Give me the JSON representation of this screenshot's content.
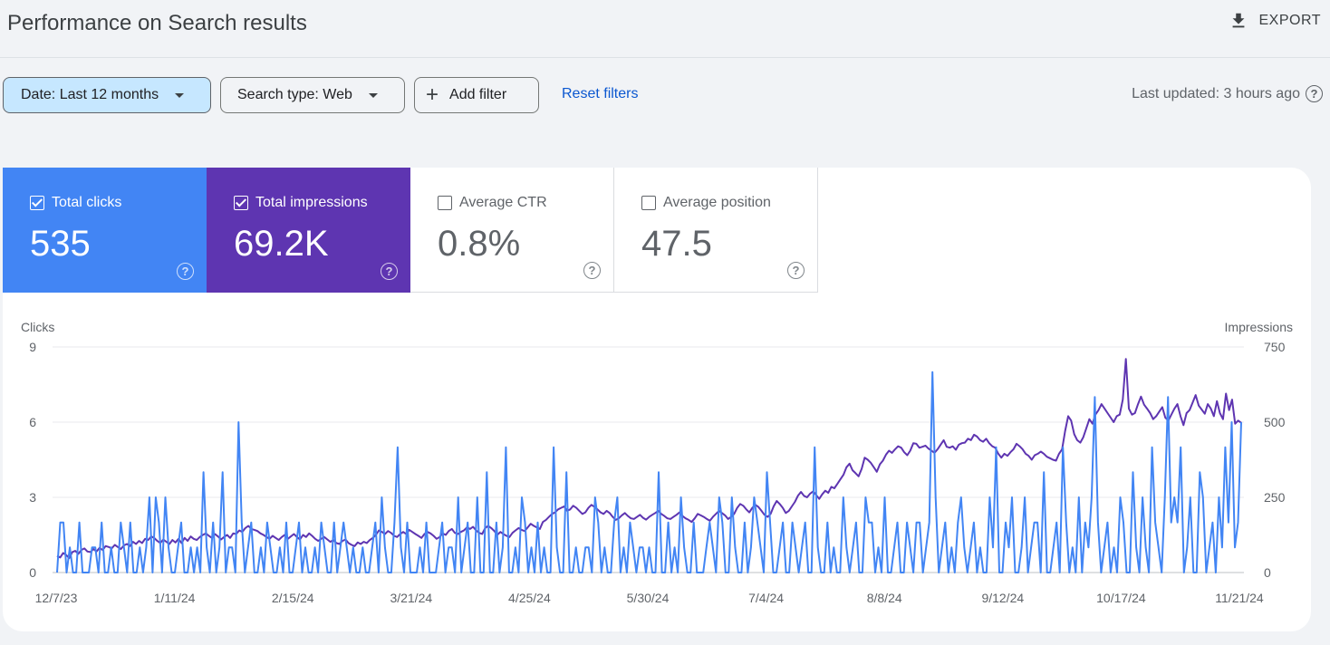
{
  "header": {
    "title": "Performance on Search results",
    "export_label": "EXPORT",
    "export_icon": "download-icon"
  },
  "filters": {
    "date_label": "Date: Last 12 months",
    "search_type_label": "Search type: Web",
    "add_filter_label": "Add filter",
    "reset_label": "Reset filters",
    "last_updated": "Last updated: 3 hours ago"
  },
  "metrics": [
    {
      "label": "Total clicks",
      "value": "535",
      "checked": true,
      "color": "#4285f4"
    },
    {
      "label": "Total impressions",
      "value": "69.2K",
      "checked": true,
      "color": "#5e35b1"
    },
    {
      "label": "Average CTR",
      "value": "0.8%",
      "checked": false
    },
    {
      "label": "Average position",
      "value": "47.5",
      "checked": false
    }
  ],
  "help_glyph": "?",
  "chart_data": {
    "type": "line",
    "left_axis_title": "Clicks",
    "right_axis_title": "Impressions",
    "left_ticks": [
      "9",
      "6",
      "3",
      "0"
    ],
    "right_ticks": [
      "750",
      "500",
      "250",
      "0"
    ],
    "ylim_left": [
      0,
      9
    ],
    "ylim_right": [
      0,
      750
    ],
    "x_ticks": [
      "12/7/23",
      "1/11/24",
      "2/15/24",
      "3/21/24",
      "4/25/24",
      "5/30/24",
      "7/4/24",
      "8/8/24",
      "9/12/24",
      "10/17/24",
      "11/21/24"
    ],
    "x_start": "2023-12-07",
    "x_end": "2024-12-05",
    "grid": true,
    "series": [
      {
        "name": "Clicks",
        "axis": "left",
        "color": "#4285f4",
        "values": [
          0,
          2,
          2,
          0,
          1,
          0,
          0,
          2,
          0,
          0,
          0,
          1,
          1,
          0,
          2,
          0,
          0,
          1,
          0,
          0,
          2,
          1,
          0,
          2,
          0,
          0,
          1,
          0,
          1,
          3,
          0,
          3,
          2,
          0,
          3,
          1,
          0,
          0,
          1,
          2,
          0,
          0,
          1,
          0,
          1,
          0,
          4,
          1,
          0,
          2,
          0,
          1,
          4,
          0,
          1,
          1,
          0,
          6,
          2,
          0,
          1,
          2,
          0,
          0,
          1,
          0,
          2,
          1,
          0,
          0,
          1,
          0,
          2,
          0,
          0,
          1,
          2,
          0,
          1,
          0,
          0,
          1,
          0,
          2,
          1,
          0,
          0,
          2,
          0,
          1,
          2,
          1,
          0,
          1,
          0,
          0,
          1,
          0,
          0,
          1,
          2,
          0,
          3,
          1,
          0,
          0,
          2,
          5,
          1,
          0,
          2,
          0,
          0,
          0,
          1,
          0,
          2,
          0,
          0,
          0,
          1,
          2,
          0,
          1,
          1,
          0,
          3,
          0,
          1,
          2,
          0,
          0,
          3,
          0,
          0,
          4,
          0,
          0,
          2,
          0,
          1,
          5,
          0,
          0,
          1,
          0,
          3,
          2,
          0,
          1,
          0,
          2,
          0,
          1,
          0,
          0,
          5,
          1,
          0,
          0,
          4,
          0,
          0,
          1,
          0,
          0,
          1,
          1,
          0,
          3,
          2,
          0,
          1,
          0,
          0,
          2,
          3,
          0,
          1,
          0,
          2,
          1,
          0,
          1,
          1,
          0,
          1,
          0,
          0,
          4,
          0,
          0,
          2,
          0,
          1,
          0,
          3,
          1,
          0,
          0,
          2,
          0,
          0,
          0,
          1,
          2,
          1,
          0,
          3,
          2,
          0,
          0,
          3,
          1,
          0,
          0,
          2,
          0,
          1,
          3,
          2,
          1,
          0,
          4,
          2,
          0,
          0,
          1,
          2,
          0,
          0,
          2,
          1,
          0,
          1,
          2,
          0,
          0,
          5,
          1,
          0,
          0,
          2,
          0,
          1,
          0,
          0,
          3,
          1,
          0,
          1,
          2,
          0,
          0,
          3,
          2,
          2,
          0,
          1,
          0,
          3,
          0,
          0,
          1,
          2,
          0,
          0,
          2,
          1,
          0,
          2,
          2,
          0,
          1,
          2,
          8,
          3,
          0,
          1,
          2,
          0,
          1,
          0,
          2,
          3,
          1,
          0,
          1,
          2,
          0,
          1,
          0,
          0,
          3,
          1,
          5,
          0,
          0,
          2,
          1,
          3,
          0,
          0,
          1,
          3,
          0,
          1,
          2,
          2,
          0,
          4,
          0,
          0,
          1,
          2,
          0,
          5,
          2,
          0,
          1,
          0,
          3,
          0,
          2,
          1,
          3,
          7,
          2,
          0,
          1,
          2,
          0,
          1,
          0,
          3,
          2,
          0,
          0,
          4,
          1,
          0,
          3,
          1,
          0,
          5,
          2,
          1,
          0,
          3,
          7,
          2,
          3,
          2,
          5,
          0,
          1,
          3,
          0,
          0,
          4,
          3,
          0,
          1,
          2,
          0,
          3,
          1,
          5,
          2,
          6,
          1,
          2,
          6
        ]
      },
      {
        "name": "Impressions",
        "axis": "right",
        "color": "#5e35b1",
        "values": [
          55,
          50,
          65,
          58,
          48,
          68,
          72,
          62,
          75,
          80,
          70,
          68,
          78,
          70,
          82,
          75,
          88,
          85,
          80,
          92,
          85,
          78,
          90,
          95,
          88,
          102,
          95,
          105,
          98,
          112,
          108,
          120,
          115,
          105,
          98,
          110,
          102,
          95,
          108,
          100,
          112,
          98,
          115,
          105,
          120,
          112,
          108,
          118,
          125,
          130,
          122,
          115,
          128,
          120,
          110,
          118,
          125,
          115,
          130,
          128,
          140,
          135,
          148,
          155,
          145,
          142,
          138,
          130,
          125,
          118,
          112,
          122,
          115,
          108,
          118,
          125,
          112,
          120,
          128,
          118,
          110,
          125,
          118,
          130,
          122,
          112,
          105,
          112,
          118,
          110,
          102,
          108,
          98,
          95,
          105,
          110,
          98,
          92,
          88,
          100,
          95,
          102,
          98,
          108,
          115,
          125,
          140,
          135,
          128,
          138,
          132,
          122,
          118,
          128,
          135,
          128,
          142,
          135,
          128,
          122,
          115,
          128,
          135,
          130,
          122,
          112,
          118,
          130,
          125,
          138,
          145,
          132,
          128,
          135,
          140,
          150,
          145,
          152,
          140,
          132,
          128,
          148,
          155,
          148,
          138,
          125,
          135,
          128,
          122,
          118,
          132,
          140,
          148,
          142,
          138,
          150,
          162,
          155,
          150,
          145,
          168,
          175,
          185,
          195,
          200,
          210,
          215,
          220,
          205,
          210,
          222,
          215,
          205,
          195,
          200,
          215,
          225,
          218,
          210,
          200,
          195,
          205,
          198,
          185,
          175,
          180,
          190,
          198,
          188,
          180,
          178,
          185,
          192,
          182,
          176,
          185,
          192,
          198,
          205,
          195,
          188,
          180,
          178,
          185,
          192,
          200,
          188,
          180,
          175,
          168,
          180,
          195,
          190,
          185,
          178,
          172,
          185,
          195,
          205,
          198,
          190,
          178,
          185,
          195,
          215,
          228,
          222,
          210,
          200,
          215,
          225,
          218,
          205,
          192,
          185,
          195,
          220,
          238,
          228,
          215,
          198,
          205,
          220,
          235,
          255,
          268,
          255,
          250,
          262,
          270,
          258,
          245,
          260,
          272,
          265,
          285,
          280,
          295,
          310,
          325,
          350,
          362,
          340,
          330,
          320,
          345,
          382,
          375,
          365,
          350,
          335,
          360,
          372,
          392,
          405,
          398,
          410,
          420,
          415,
          400,
          390,
          405,
          430,
          428,
          415,
          418,
          422,
          412,
          405,
          398,
          410,
          425,
          440,
          418,
          415,
          420,
          408,
          425,
          430,
          432,
          445,
          440,
          458,
          452,
          440,
          435,
          445,
          430,
          420,
          415,
          395,
          382,
          395,
          388,
          400,
          410,
          428,
          420,
          410,
          395,
          388,
          375,
          390,
          395,
          402,
          395,
          385,
          380,
          375,
          372,
          395,
          410,
          470,
          520,
          505,
          460,
          440,
          432,
          450,
          480,
          510,
          495,
          525,
          540,
          560,
          545,
          530,
          515,
          500,
          520,
          525,
          575,
          710,
          545,
          525,
          530,
          560,
          585,
          558,
          545,
          530,
          510,
          520,
          535,
          550,
          515,
          505,
          525,
          545,
          560,
          520,
          490,
          530,
          540,
          565,
          590,
          555,
          542,
          528,
          560,
          545,
          520,
          570,
          530,
          510,
          595,
          540,
          575,
          495,
          505,
          498
        ]
      }
    ]
  }
}
